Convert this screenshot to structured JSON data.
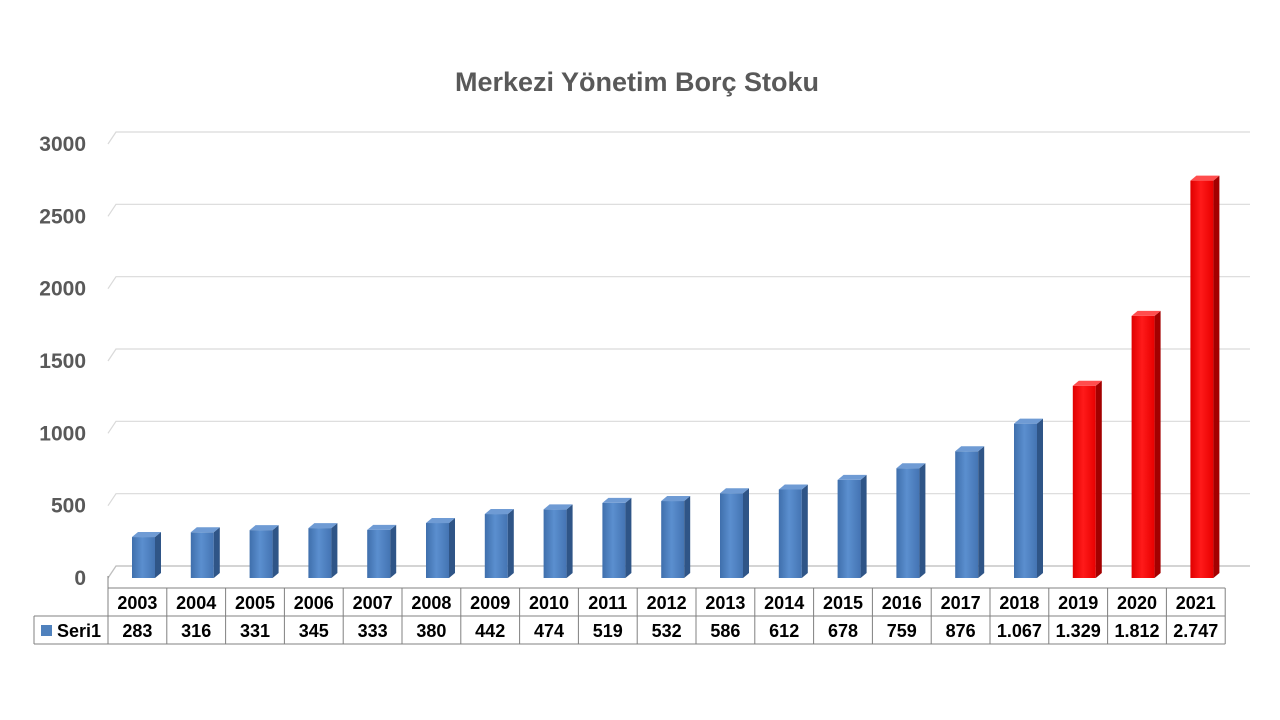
{
  "chart_data": {
    "type": "bar",
    "title": "Merkezi Yönetim Borç Stoku",
    "xlabel": "",
    "ylabel": "",
    "ylim": [
      0,
      3000
    ],
    "yticks": [
      0,
      500,
      1000,
      1500,
      2000,
      2500,
      3000
    ],
    "grid": true,
    "categories": [
      "2003",
      "2004",
      "2005",
      "2006",
      "2007",
      "2008",
      "2009",
      "2010",
      "2011",
      "2012",
      "2013",
      "2014",
      "2015",
      "2016",
      "2017",
      "2018",
      "2019",
      "2020",
      "2021"
    ],
    "series": [
      {
        "name": "Seri1",
        "values": [
          283,
          316,
          331,
          345,
          333,
          380,
          442,
          474,
          519,
          532,
          586,
          612,
          678,
          759,
          876,
          1067,
          1329,
          1812,
          2747
        ],
        "value_labels": [
          "283",
          "316",
          "331",
          "345",
          "333",
          "380",
          "442",
          "474",
          "519",
          "532",
          "586",
          "612",
          "678",
          "759",
          "876",
          "1.067",
          "1.329",
          "1.812",
          "2.747"
        ],
        "color": "#4f81bd",
        "highlight_color": "#ff0000",
        "highlighted_categories": [
          "2019",
          "2020",
          "2021"
        ]
      }
    ],
    "data_table": true
  }
}
